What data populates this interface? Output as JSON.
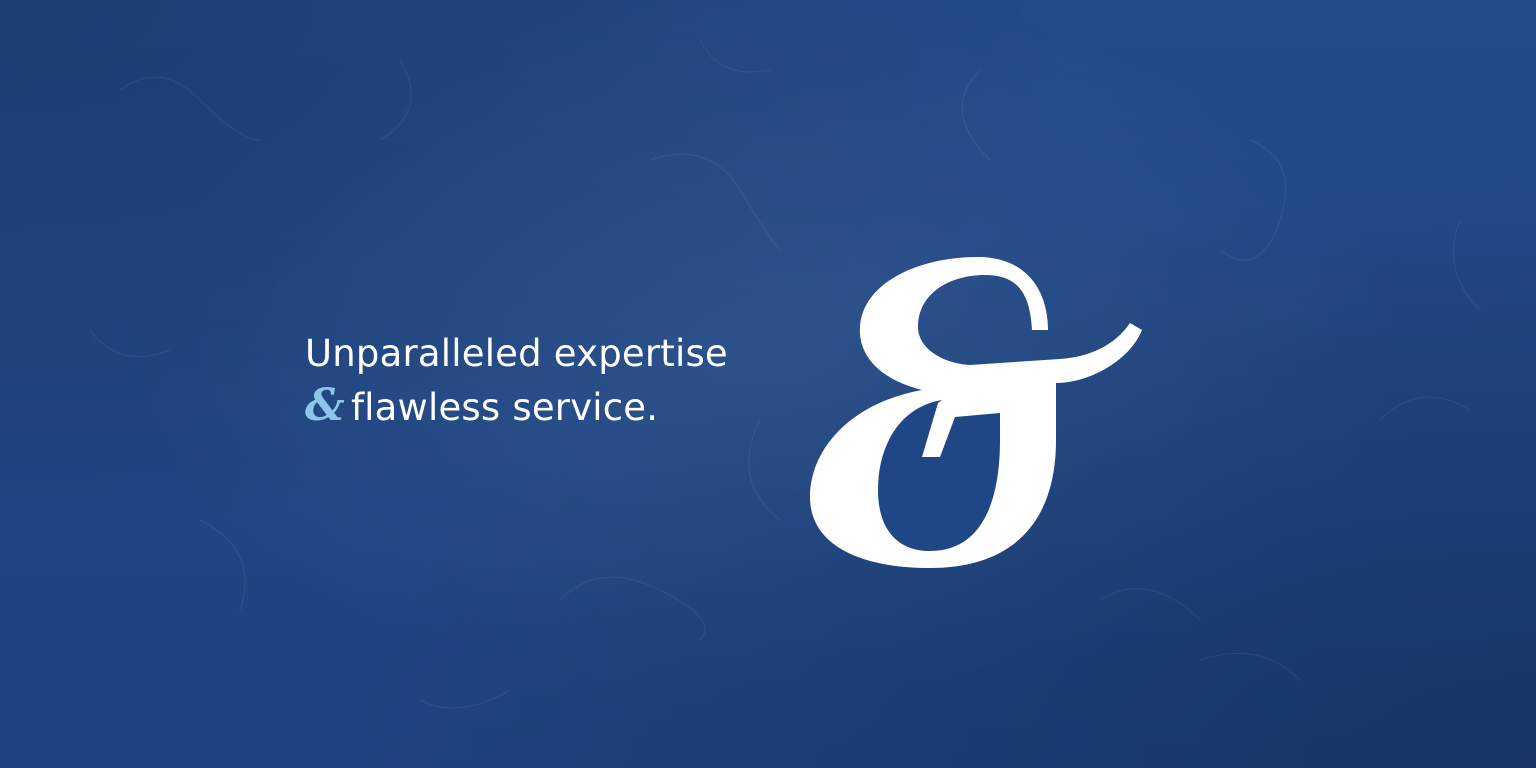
{
  "tagline": {
    "line1": "Unparalleled expertise",
    "ampersand": "&",
    "line2": "flawless service."
  },
  "logo": {
    "glyph": "&",
    "icon": "ampersand-logo-icon"
  },
  "colors": {
    "background": "#1f4785",
    "text": "#ffffff",
    "accent": "#8ec3ea"
  }
}
